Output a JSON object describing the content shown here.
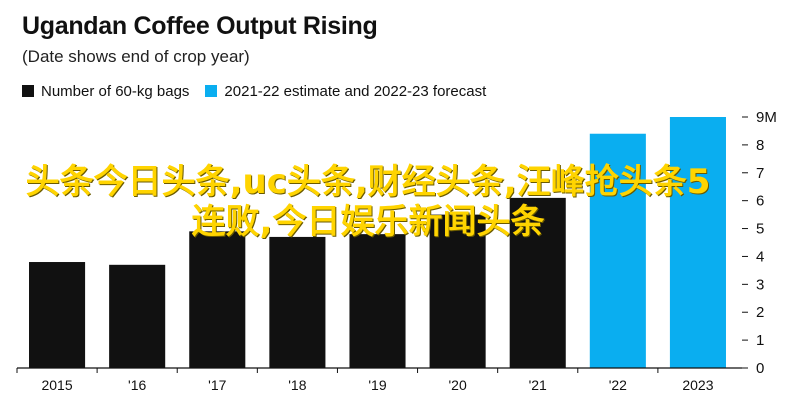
{
  "header": {
    "title": "Ugandan Coffee Output Rising",
    "subtitle": "(Date shows end of crop year)"
  },
  "legend": [
    {
      "label": "Number of 60-kg bags",
      "color": "#111111"
    },
    {
      "label": "2021-22 estimate and 2022-23 forecast",
      "color": "#0aaef0"
    }
  ],
  "overlay": {
    "text": "头条今日头条,uc头条,财经头条,汪峰抢头条5连败,今日娱乐新闻头条"
  },
  "chart_data": {
    "type": "bar",
    "categories": [
      "2015",
      "'16",
      "'17",
      "'18",
      "'19",
      "'20",
      "'21",
      "'22",
      "2023"
    ],
    "values": [
      3.8,
      3.7,
      4.9,
      4.7,
      4.8,
      5.5,
      6.1,
      8.4,
      9.0
    ],
    "colors": [
      "#111111",
      "#111111",
      "#111111",
      "#111111",
      "#111111",
      "#111111",
      "#111111",
      "#0aaef0",
      "#0aaef0"
    ],
    "ylim": [
      0,
      9
    ],
    "yticks": [
      0,
      1,
      2,
      3,
      4,
      5,
      6,
      7,
      8,
      9
    ],
    "ytick_labels": [
      "0",
      "1",
      "2",
      "3",
      "4",
      "5",
      "6",
      "7",
      "8",
      "9M"
    ],
    "y_axis_position": "right",
    "grid": false,
    "xlabel": "",
    "ylabel": "",
    "legend_position": "top-left"
  }
}
